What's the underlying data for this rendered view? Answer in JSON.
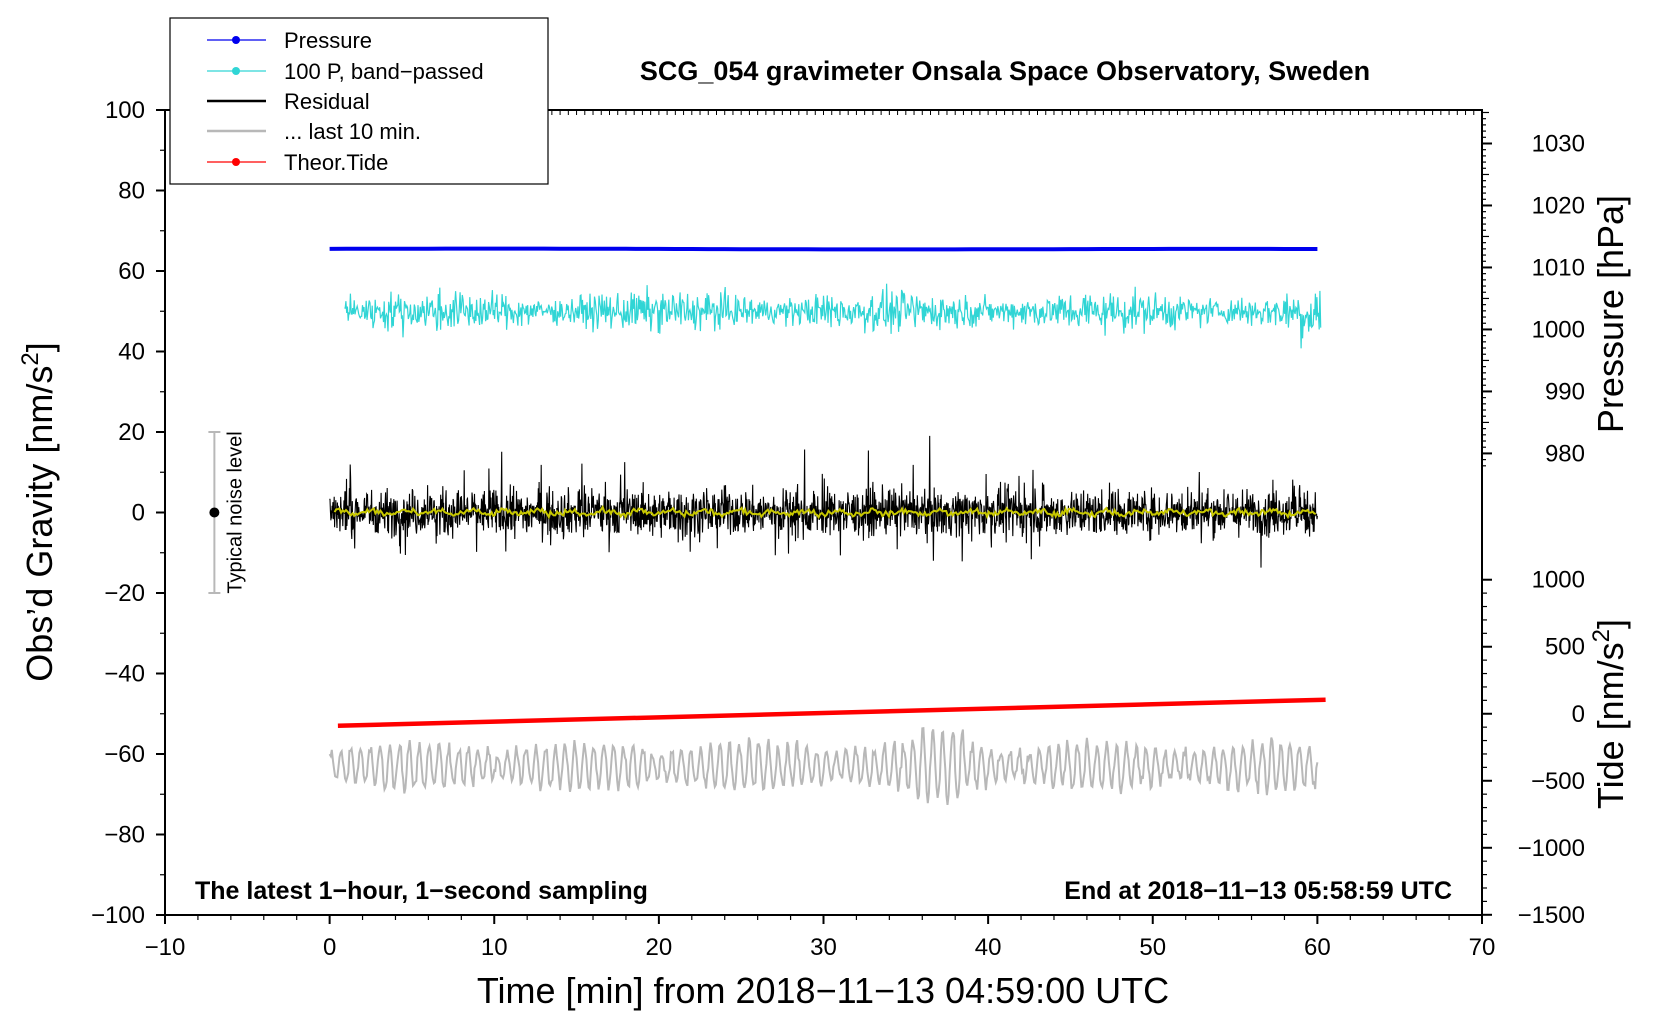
{
  "chart_data": {
    "type": "line",
    "title": "SCG_054 gravimeter Onsala Space Observatory, Sweden",
    "xlabel": "Time [min] from 2018−11−13 04:59:00 UTC",
    "ylabel_left": "Obs’d Gravity [nm/s",
    "ylabel_left_sup": "2",
    "ylabel_left_end": "]",
    "ylabel_pressure": "Pressure [hPa]",
    "ylabel_tide": "Tide [nm/s",
    "ylabel_tide_sup": "2",
    "ylabel_tide_end": "]",
    "xlim": [
      -10,
      70
    ],
    "ylim": [
      -100,
      100
    ],
    "x_ticks": [
      -10,
      0,
      10,
      20,
      30,
      40,
      50,
      60,
      70
    ],
    "x_tick_labels": [
      "−10",
      "0",
      "10",
      "20",
      "30",
      "40",
      "50",
      "60",
      "70"
    ],
    "y_ticks": [
      -100,
      -80,
      -60,
      -40,
      -20,
      0,
      20,
      40,
      60,
      80,
      100
    ],
    "y_tick_labels": [
      "−100",
      "−80",
      "−60",
      "−40",
      "−20",
      "0",
      "20",
      "40",
      "60",
      "80",
      "100"
    ],
    "pressure_axis": {
      "ticks": [
        980,
        990,
        1000,
        1010,
        1020,
        1030
      ],
      "tick_labels": [
        "980",
        "990",
        "1000",
        "1010",
        "1020",
        "1030"
      ],
      "mapping": "left_value = 65.5 + (hPa - 1013) * 1.54"
    },
    "tide_axis": {
      "ticks": [
        -1500,
        -1000,
        -500,
        0,
        500,
        1000
      ],
      "tick_labels": [
        "−1500",
        "−1000",
        "−500",
        "0",
        "500",
        "1000"
      ],
      "mapping": "left_value = -50 + tide * 0.0333"
    },
    "series": [
      {
        "name": "Pressure",
        "color": "#0000ee",
        "hPa": 1013,
        "values_left_axis": [
          65.5,
          65.4
        ]
      },
      {
        "name": "100 P, band−passed",
        "color": "#30d5d5",
        "center_left_axis": 50,
        "amplitude": 4
      },
      {
        "name": "Residual",
        "color": "#000000",
        "center_left_axis": 0,
        "amplitude": 11
      },
      {
        "name": "Residual (smoothed)",
        "color": "#c8c800",
        "center_left_axis": 0
      },
      {
        "name": "... last 10 min.",
        "color": "#b8b8b8",
        "center_left_axis": -63,
        "amplitude": 8
      },
      {
        "name": "Theor.Tide",
        "color": "#ff0000",
        "x": [
          0.5,
          60.5
        ],
        "values_left_axis": [
          -53,
          -46.5
        ]
      }
    ],
    "noise_bar": {
      "label": "Typical noise level",
      "x": -7,
      "center": 0,
      "range": [
        -20,
        20
      ]
    },
    "legend": {
      "position": "top-left",
      "items": [
        "Pressure",
        "100 P, band−passed",
        "Residual",
        "... last 10 min.",
        "Theor.Tide"
      ]
    },
    "annotations": {
      "bottom_left": "The latest 1−hour, 1−second sampling",
      "bottom_right": "End at 2018−11−13 05:58:59 UTC"
    }
  }
}
